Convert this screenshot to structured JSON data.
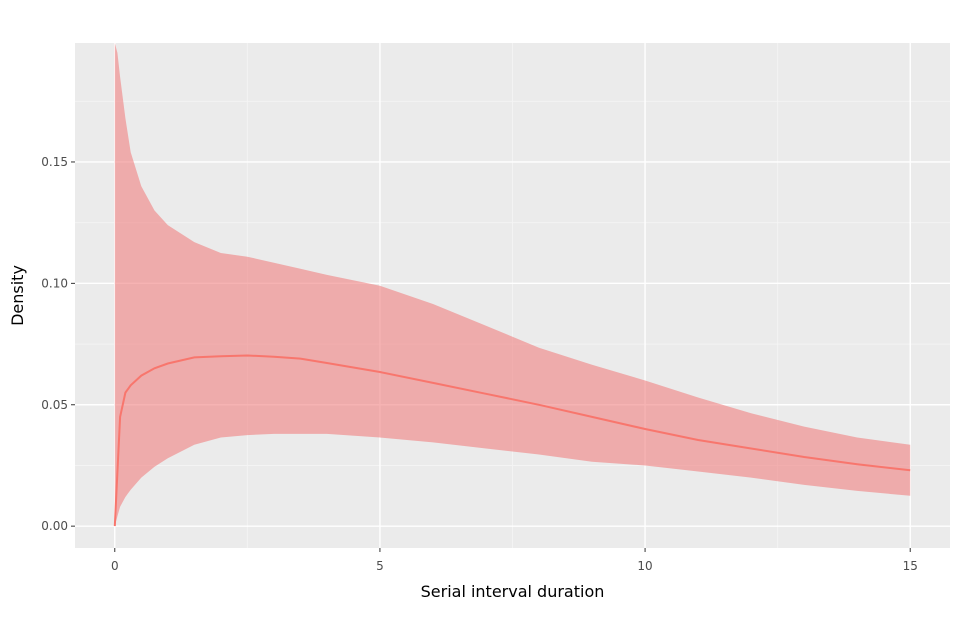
{
  "chart_data": {
    "type": "area",
    "title": "",
    "xlabel": "Serial interval duration",
    "ylabel": "Density",
    "xlim": [
      -0.75,
      15.75
    ],
    "ylim": [
      -0.009,
      0.199
    ],
    "xticks": [
      0,
      5,
      10,
      15
    ],
    "xtick_labels": [
      "0",
      "5",
      "10",
      "15"
    ],
    "yticks": [
      0.0,
      0.05,
      0.1,
      0.15
    ],
    "ytick_labels": [
      "0.00",
      "0.05",
      "0.10",
      "0.15"
    ],
    "grid": true,
    "legend": "none",
    "colors": {
      "panel_background": "#ebebeb",
      "grid_major": "#ffffff",
      "grid_minor": "#f5f5f5",
      "ribbon": "#f08080",
      "ribbon_opacity": 0.6,
      "line": "#f8766d"
    },
    "series": [
      {
        "type": "line",
        "x": [
          0,
          0.1,
          0.2,
          0.3,
          0.5,
          0.75,
          1,
          1.5,
          2,
          2.5,
          3,
          3.5,
          4,
          5,
          6,
          7,
          8,
          9,
          10,
          11,
          12,
          13,
          14,
          15
        ],
        "y": [
          0.0,
          0.045,
          0.055,
          0.058,
          0.062,
          0.065,
          0.067,
          0.0695,
          0.07,
          0.0703,
          0.0698,
          0.069,
          0.0672,
          0.0635,
          0.059,
          0.0545,
          0.05,
          0.045,
          0.04,
          0.0355,
          0.032,
          0.0285,
          0.0255,
          0.023
        ]
      },
      {
        "type": "ribbon",
        "x": [
          0,
          0.05,
          0.1,
          0.2,
          0.3,
          0.5,
          0.75,
          1,
          1.5,
          2,
          2.5,
          3,
          3.5,
          4,
          5,
          6,
          7,
          8,
          9,
          10,
          11,
          12,
          13,
          14,
          15
        ],
        "ymin": [
          0.0,
          0.004,
          0.008,
          0.012,
          0.015,
          0.02,
          0.0245,
          0.028,
          0.0335,
          0.0365,
          0.0375,
          0.038,
          0.038,
          0.038,
          0.0365,
          0.0345,
          0.032,
          0.0295,
          0.0265,
          0.025,
          0.0225,
          0.02,
          0.017,
          0.0145,
          0.0125
        ],
        "ymax": [
          0.199,
          0.195,
          0.185,
          0.168,
          0.154,
          0.14,
          0.13,
          0.124,
          0.117,
          0.1125,
          0.111,
          0.1085,
          0.106,
          0.1035,
          0.099,
          0.0915,
          0.0825,
          0.0735,
          0.0665,
          0.06,
          0.053,
          0.0465,
          0.041,
          0.0365,
          0.0335
        ]
      }
    ]
  }
}
